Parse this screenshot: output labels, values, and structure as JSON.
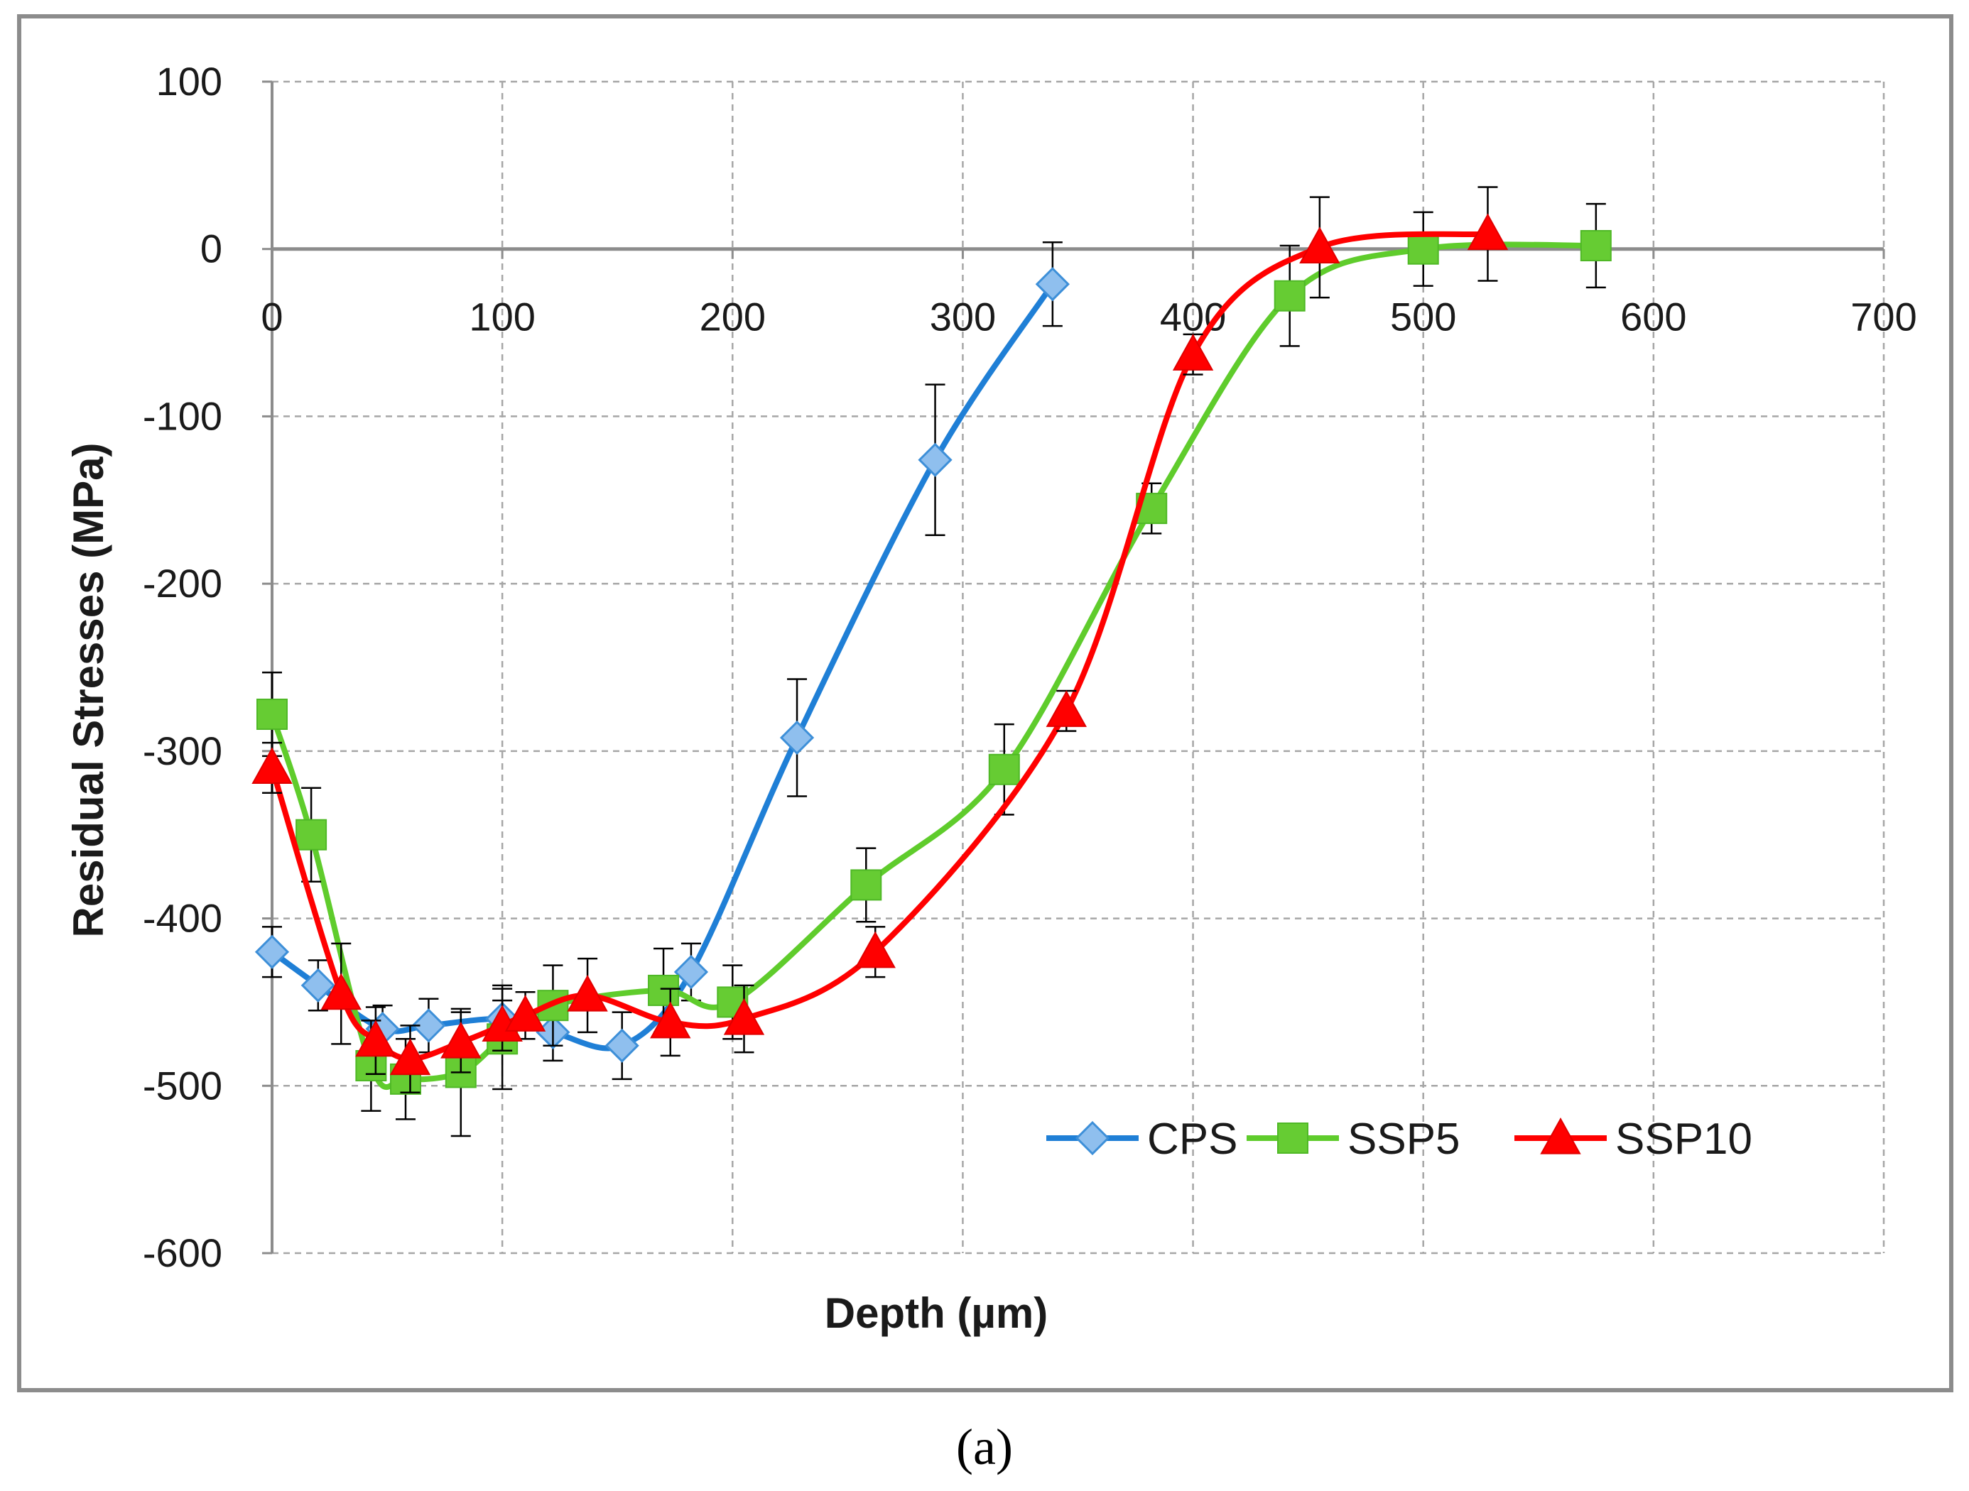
{
  "chart_data": {
    "type": "line",
    "title": "",
    "xlabel": "Depth (µm)",
    "ylabel": "Residual Stresses (MPa)",
    "xlim": [
      0,
      700
    ],
    "ylim": [
      -600,
      100
    ],
    "xticks": [
      0,
      100,
      200,
      300,
      400,
      500,
      600,
      700
    ],
    "yticks": [
      100,
      0,
      -100,
      -200,
      -300,
      -400,
      -500,
      -600
    ],
    "grid": true,
    "legend_position": "bottom-right",
    "caption": "(a)",
    "series": [
      {
        "name": "CPS",
        "color": "#1f7fd6",
        "marker_fill": "#8fbfee",
        "marker": "diamond",
        "x": [
          0,
          20,
          48,
          68,
          100,
          122,
          152,
          182,
          228,
          288,
          339
        ],
        "y": [
          -420,
          -440,
          -466,
          -464,
          -460,
          -468,
          -476,
          -432,
          -292,
          -126,
          -21
        ],
        "err": [
          15,
          15,
          14,
          16,
          20,
          17,
          20,
          17,
          35,
          45,
          25
        ]
      },
      {
        "name": "SSP5",
        "color": "#5fcc2c",
        "marker_fill": "#66cc33",
        "marker": "square",
        "x": [
          0,
          17,
          43,
          58,
          82,
          100,
          122,
          170,
          200,
          258,
          318,
          382,
          442,
          500,
          575
        ],
        "y": [
          -278,
          -350,
          -488,
          -496,
          -492,
          -472,
          -452,
          -443,
          -450,
          -380,
          -311,
          -155,
          -28,
          0,
          2
        ],
        "err": [
          25,
          28,
          27,
          24,
          38,
          30,
          24,
          25,
          22,
          22,
          27,
          15,
          30,
          22,
          25
        ]
      },
      {
        "name": "SSP10",
        "color": "#ff0000",
        "marker_fill": "#ff0000",
        "marker": "triangle",
        "x": [
          0,
          30,
          45,
          60,
          82,
          100,
          110,
          137,
          173,
          205,
          262,
          345,
          400,
          455,
          528
        ],
        "y": [
          -310,
          -445,
          -473,
          -484,
          -474,
          -464,
          -458,
          -446,
          -462,
          -460,
          -420,
          -276,
          -63,
          1,
          9
        ],
        "err": [
          15,
          30,
          20,
          20,
          18,
          15,
          14,
          22,
          20,
          20,
          15,
          12,
          12,
          30,
          28
        ]
      }
    ]
  }
}
